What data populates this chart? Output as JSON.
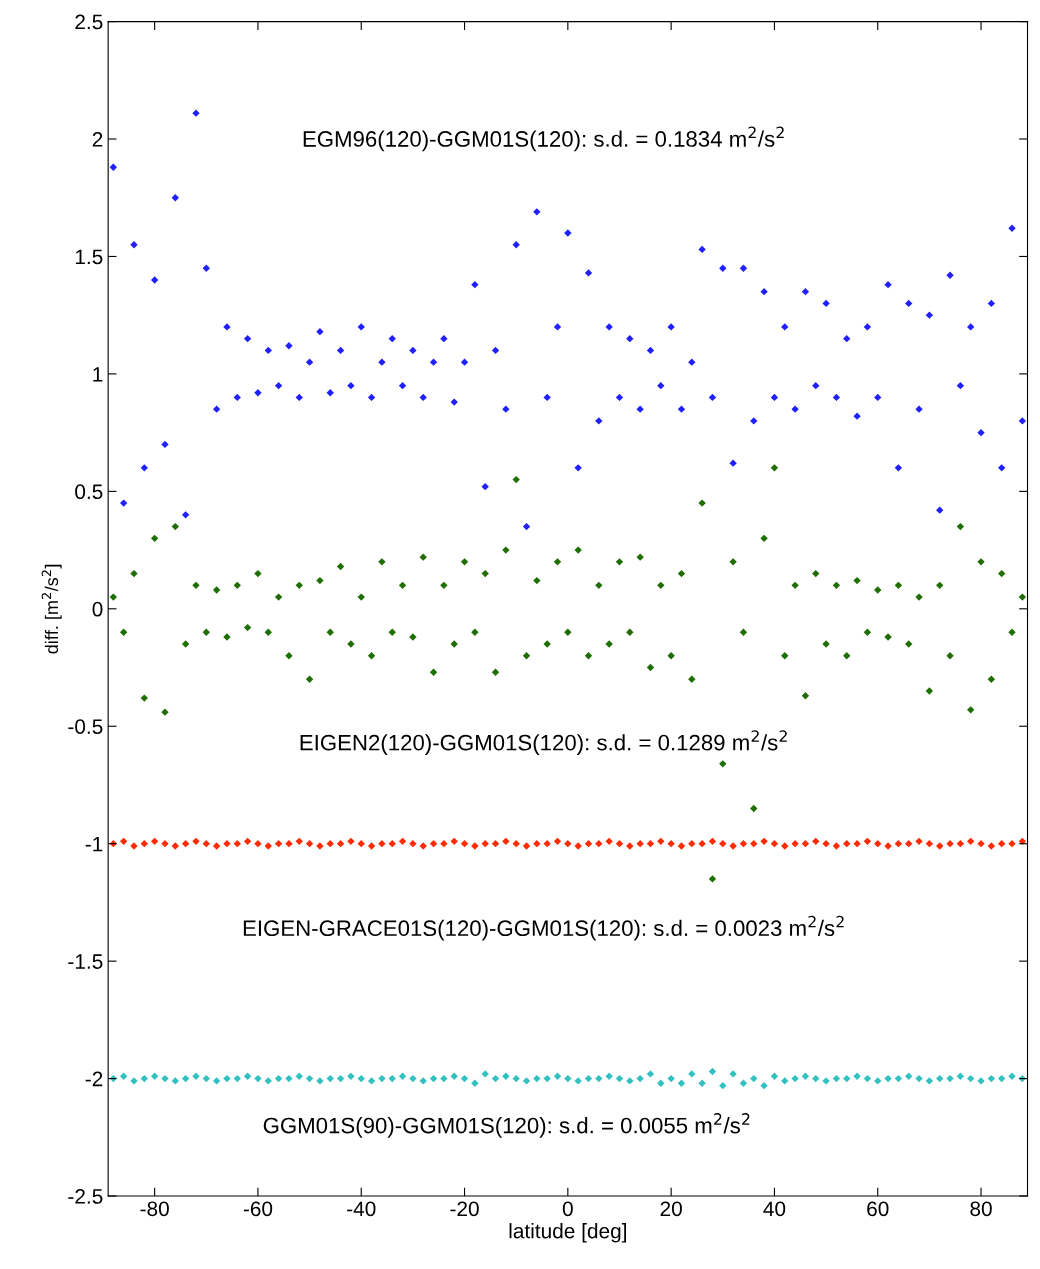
{
  "chart_data": {
    "type": "scatter",
    "xlabel": "latitude [deg]",
    "ylabel": "diff. [m$^{2}$/s$^{2}$]",
    "x": [
      -88,
      -86,
      -84,
      -82,
      -80,
      -78,
      -76,
      -74,
      -72,
      -70,
      -68,
      -66,
      -64,
      -62,
      -60,
      -58,
      -56,
      -54,
      -52,
      -50,
      -48,
      -46,
      -44,
      -42,
      -40,
      -38,
      -36,
      -34,
      -32,
      -30,
      -28,
      -26,
      -24,
      -22,
      -20,
      -18,
      -16,
      -14,
      -12,
      -10,
      -8,
      -6,
      -4,
      -2,
      0,
      2,
      4,
      6,
      8,
      10,
      12,
      14,
      16,
      18,
      20,
      22,
      24,
      26,
      28,
      30,
      32,
      34,
      36,
      38,
      40,
      42,
      44,
      46,
      48,
      50,
      52,
      54,
      56,
      58,
      60,
      62,
      64,
      66,
      68,
      70,
      72,
      74,
      76,
      78,
      80,
      82,
      84,
      86,
      88
    ],
    "series": [
      {
        "color": "#2020ff",
        "values": [
          1.88,
          0.45,
          1.55,
          0.6,
          1.4,
          0.7,
          1.75,
          0.4,
          2.11,
          1.45,
          0.85,
          1.2,
          0.9,
          1.15,
          0.92,
          1.1,
          0.95,
          1.12,
          0.9,
          1.05,
          1.18,
          0.92,
          1.1,
          0.95,
          1.2,
          0.9,
          1.05,
          1.15,
          0.95,
          1.1,
          0.9,
          1.05,
          1.15,
          0.88,
          1.05,
          1.38,
          0.52,
          1.1,
          0.85,
          1.55,
          0.35,
          1.69,
          0.9,
          1.2,
          1.6,
          0.6,
          1.43,
          0.8,
          1.2,
          0.9,
          1.15,
          0.85,
          1.1,
          0.95,
          1.2,
          0.85,
          1.05,
          1.53,
          0.9,
          1.45,
          0.62,
          1.45,
          0.8,
          1.35,
          0.9,
          1.2,
          0.85,
          1.35,
          0.95,
          1.3,
          0.9,
          1.15,
          0.82,
          1.2,
          0.9,
          1.38,
          0.6,
          1.3,
          0.85,
          1.25,
          0.42,
          1.42,
          0.95,
          1.2,
          0.75,
          1.3,
          0.6,
          1.62,
          0.8
        ]
      },
      {
        "color": "#1f6e00",
        "values": [
          0.05,
          -0.1,
          0.15,
          -0.38,
          0.3,
          -0.44,
          0.35,
          -0.15,
          0.1,
          -0.1,
          0.08,
          -0.12,
          0.1,
          -0.08,
          0.15,
          -0.1,
          0.05,
          -0.2,
          0.1,
          -0.3,
          0.12,
          -0.1,
          0.18,
          -0.15,
          0.05,
          -0.2,
          0.2,
          -0.1,
          0.1,
          -0.12,
          0.22,
          -0.27,
          0.1,
          -0.15,
          0.2,
          -0.1,
          0.15,
          -0.27,
          0.25,
          0.55,
          -0.2,
          0.12,
          -0.15,
          0.2,
          -0.1,
          0.25,
          -0.2,
          0.1,
          -0.15,
          0.2,
          -0.1,
          0.22,
          -0.25,
          0.1,
          -0.2,
          0.15,
          -0.3,
          0.45,
          -1.15,
          -0.66,
          0.2,
          -0.1,
          -0.85,
          0.3,
          0.6,
          -0.2,
          0.1,
          -0.37,
          0.15,
          -0.15,
          0.1,
          -0.2,
          0.12,
          -0.1,
          0.08,
          -0.12,
          0.1,
          -0.15,
          0.05,
          -0.35,
          0.1,
          -0.2,
          0.35,
          -0.43,
          0.2,
          -0.3,
          0.15,
          -0.1,
          0.05
        ]
      },
      {
        "color": "#ff2a00",
        "values": [
          -1,
          -0.99,
          -1.01,
          -1,
          -0.99,
          -1,
          -1.01,
          -1,
          -0.99,
          -1,
          -1.01,
          -1,
          -1,
          -0.99,
          -1,
          -1.01,
          -1,
          -1,
          -0.99,
          -1,
          -1.01,
          -1,
          -1,
          -0.99,
          -1,
          -1.01,
          -1,
          -1,
          -0.99,
          -1,
          -1.01,
          -1,
          -1,
          -0.99,
          -1,
          -1.01,
          -1,
          -1,
          -0.99,
          -1,
          -1.01,
          -1,
          -1,
          -0.99,
          -1,
          -1.01,
          -1,
          -1,
          -0.99,
          -1,
          -1.01,
          -1,
          -1,
          -0.99,
          -1,
          -1.01,
          -1,
          -1,
          -0.99,
          -1,
          -1.01,
          -1,
          -1,
          -0.99,
          -1,
          -1.01,
          -1,
          -1,
          -0.99,
          -1,
          -1.01,
          -1,
          -1,
          -0.99,
          -1,
          -1.01,
          -1,
          -1,
          -0.99,
          -1,
          -1.01,
          -1,
          -1,
          -0.99,
          -1,
          -1.01,
          -1,
          -1,
          -0.99
        ]
      },
      {
        "color": "#33c0c0",
        "values": [
          -2,
          -1.99,
          -2.01,
          -2,
          -1.99,
          -2,
          -2.01,
          -2,
          -1.99,
          -2,
          -2.01,
          -2,
          -2,
          -1.99,
          -2,
          -2.01,
          -2,
          -2,
          -1.99,
          -2,
          -2.01,
          -2,
          -2,
          -1.99,
          -2,
          -2.01,
          -2,
          -2,
          -1.99,
          -2,
          -2.01,
          -2,
          -2,
          -1.99,
          -2,
          -2.02,
          -1.98,
          -2,
          -1.99,
          -2,
          -2.01,
          -2,
          -2,
          -1.99,
          -2,
          -2.01,
          -2,
          -2,
          -1.99,
          -2,
          -2.01,
          -2,
          -1.98,
          -2.02,
          -2,
          -2.02,
          -1.98,
          -2.02,
          -1.97,
          -2.03,
          -1.98,
          -2.02,
          -2,
          -2.03,
          -1.99,
          -2.01,
          -2,
          -1.99,
          -2,
          -2.01,
          -2,
          -2,
          -1.99,
          -2,
          -2.01,
          -2,
          -2,
          -1.99,
          -2,
          -2.01,
          -2,
          -2,
          -1.99,
          -2,
          -2.01,
          -2,
          -2,
          -1.99,
          -2
        ]
      }
    ],
    "marker": "diamond",
    "grid": false,
    "legend": false,
    "xlim": [
      -89,
      89
    ],
    "xticks": [
      -80,
      -60,
      -40,
      -20,
      0,
      20,
      40,
      60,
      80
    ],
    "ylim": [
      -2.5,
      2.5
    ],
    "yticks": [
      -2.5,
      -2,
      -1.5,
      -1,
      -0.5,
      0,
      0.5,
      1,
      1.5,
      2,
      2.5
    ],
    "annotations": [
      "EGM96(120)-GGM01S(120): s.d. = 0.1834 m$^{2}$/s$^{2}$",
      "EIGEN2(120)-GGM01S(120): s.d. = 0.1289 m$^{2}$/s$^{2}$",
      "EIGEN-GRACE01S(120)-GGM01S(120): s.d. = 0.0023 m$^{2}$/s$^{2}$",
      "GGM01S(90)-GGM01S(120): s.d. = 0.0055 m$^{2}$/s$^{2}$"
    ]
  }
}
